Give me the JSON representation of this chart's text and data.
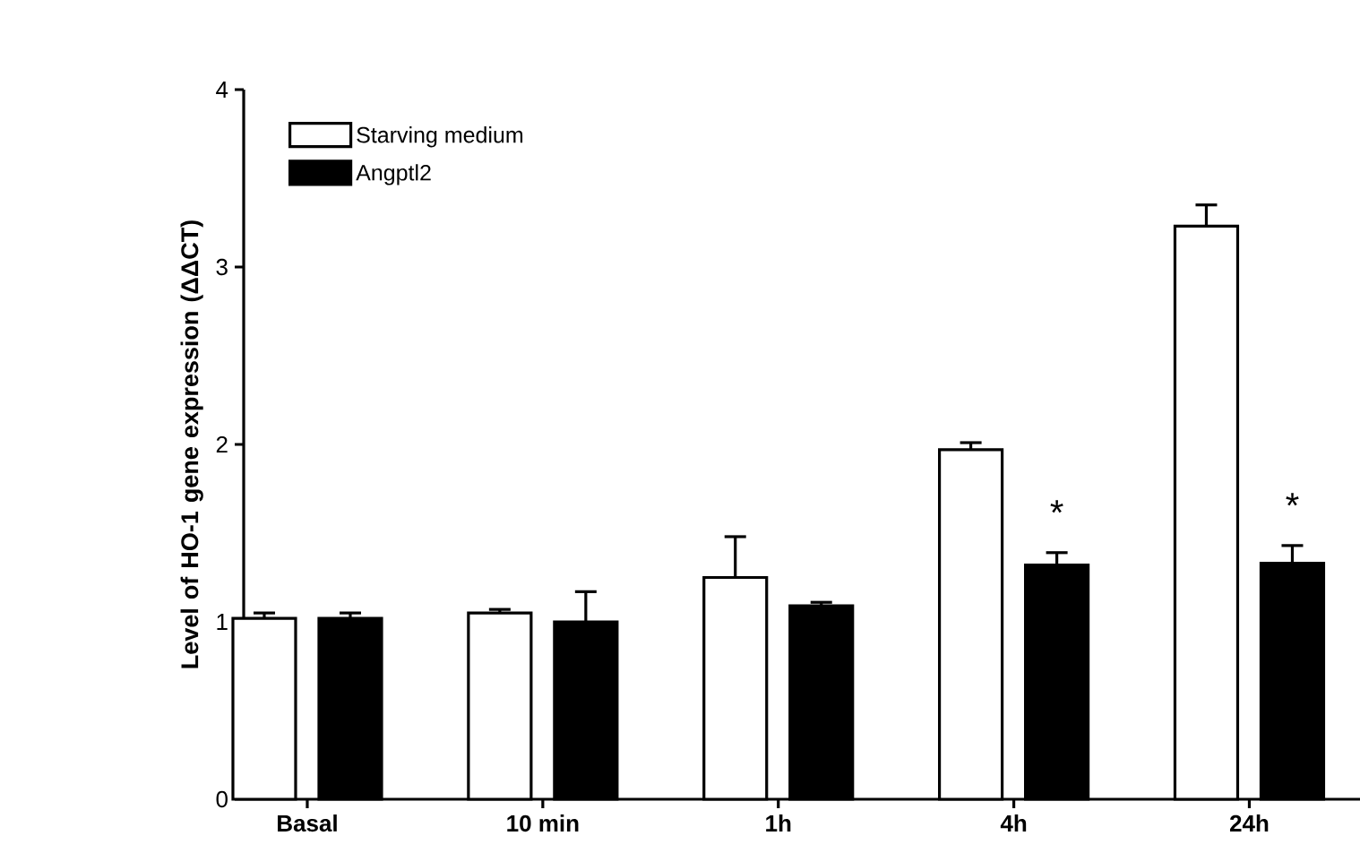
{
  "chart_data": {
    "type": "bar",
    "ylabel": "Level of HO-1 gene expression (ΔΔCT)",
    "categories": [
      "Basal",
      "10 min",
      "1h",
      "4h",
      "24h"
    ],
    "series": [
      {
        "name": "Starving medium",
        "color": "#ffffff",
        "values": [
          1.02,
          1.05,
          1.25,
          1.97,
          3.23
        ],
        "errors": [
          [
            1.02,
            1.05
          ],
          [
            1.05,
            1.07
          ],
          [
            1.25,
            1.48
          ],
          [
            1.97,
            2.01
          ],
          [
            3.23,
            3.35
          ]
        ]
      },
      {
        "name": "Angptl2",
        "color": "#000000",
        "values": [
          1.02,
          1.0,
          1.09,
          1.32,
          1.33
        ],
        "errors": [
          [
            1.02,
            1.05
          ],
          [
            1.0,
            1.17
          ],
          [
            1.09,
            1.11
          ],
          [
            1.32,
            1.39
          ],
          [
            1.33,
            1.43
          ]
        ]
      }
    ],
    "ylim": [
      0,
      4
    ],
    "yticks": [
      0,
      1,
      2,
      3,
      4
    ],
    "legend": "top left",
    "grid": false,
    "annotations": [
      "*",
      "*"
    ]
  }
}
